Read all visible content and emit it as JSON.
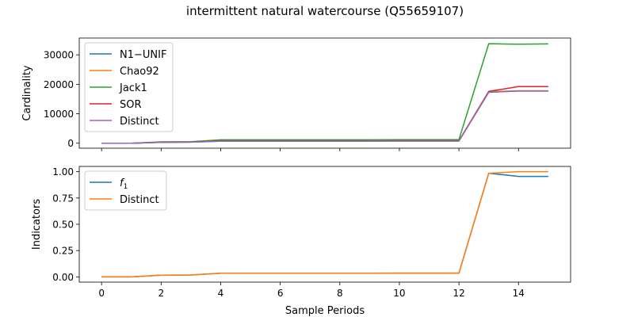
{
  "figure": {
    "title": "intermittent natural watercourse (Q55659107)",
    "xlabel": "Sample Periods"
  },
  "chart_data": [
    {
      "type": "line",
      "ylabel": "Cardinality",
      "x": [
        0,
        1,
        2,
        3,
        4,
        5,
        6,
        7,
        8,
        9,
        10,
        11,
        12,
        13,
        14,
        15
      ],
      "xlim": [
        -0.75,
        15.75
      ],
      "ylim": [
        -1700,
        35700
      ],
      "xticks": [
        0,
        2,
        4,
        6,
        8,
        10,
        12,
        14
      ],
      "xticklabels": [
        "0",
        "2",
        "4",
        "6",
        "8",
        "10",
        "12",
        "14"
      ],
      "yticks": [
        0,
        10000,
        20000,
        30000
      ],
      "yticklabels": [
        "0",
        "10000",
        "20000",
        "30000"
      ],
      "grid": false,
      "legend": "upper-left",
      "series": [
        {
          "name": "N1−UNIF",
          "color": "#1f77b4",
          "values": [
            0,
            0,
            300,
            350,
            700,
            700,
            700,
            700,
            700,
            700,
            720,
            720,
            720,
            17300,
            17700,
            17700
          ]
        },
        {
          "name": "Chao92",
          "color": "#ff7f0e",
          "values": [
            0,
            0,
            320,
            380,
            750,
            750,
            750,
            750,
            750,
            750,
            760,
            760,
            760,
            17500,
            17800,
            17800
          ]
        },
        {
          "name": "Jack1",
          "color": "#2ca02c",
          "values": [
            0,
            0,
            450,
            500,
            1150,
            1150,
            1150,
            1150,
            1150,
            1150,
            1200,
            1200,
            1200,
            33800,
            33600,
            33700
          ]
        },
        {
          "name": "SOR",
          "color": "#d62728",
          "values": [
            0,
            0,
            350,
            400,
            800,
            800,
            800,
            800,
            800,
            800,
            820,
            820,
            820,
            17600,
            19200,
            19200
          ]
        },
        {
          "name": "Distinct",
          "color": "#9467bd",
          "values": [
            0,
            0,
            300,
            350,
            700,
            700,
            700,
            700,
            700,
            700,
            720,
            720,
            720,
            17300,
            17700,
            17700
          ]
        }
      ]
    },
    {
      "type": "line",
      "ylabel": "Indicators",
      "x": [
        0,
        1,
        2,
        3,
        4,
        5,
        6,
        7,
        8,
        9,
        10,
        11,
        12,
        13,
        14,
        15
      ],
      "xlim": [
        -0.75,
        15.75
      ],
      "ylim": [
        -0.05,
        1.05
      ],
      "xticks": [
        0,
        2,
        4,
        6,
        8,
        10,
        12,
        14
      ],
      "xticklabels": [
        "0",
        "2",
        "4",
        "6",
        "8",
        "10",
        "12",
        "14"
      ],
      "yticks": [
        0,
        0.25,
        0.5,
        0.75,
        1.0
      ],
      "yticklabels": [
        "0.00",
        "0.25",
        "0.50",
        "0.75",
        "1.00"
      ],
      "grid": false,
      "legend": "upper-left",
      "series": [
        {
          "name": "f",
          "name_sub": "1",
          "color": "#1f77b4",
          "values": [
            0,
            0,
            0.016,
            0.018,
            0.035,
            0.035,
            0.035,
            0.035,
            0.035,
            0.035,
            0.036,
            0.036,
            0.036,
            0.985,
            0.955,
            0.955
          ]
        },
        {
          "name": "Distinct",
          "color": "#ff7f0e",
          "values": [
            0,
            0,
            0.016,
            0.018,
            0.035,
            0.035,
            0.035,
            0.035,
            0.035,
            0.035,
            0.036,
            0.036,
            0.036,
            0.985,
            1.0,
            1.0
          ]
        }
      ]
    }
  ]
}
